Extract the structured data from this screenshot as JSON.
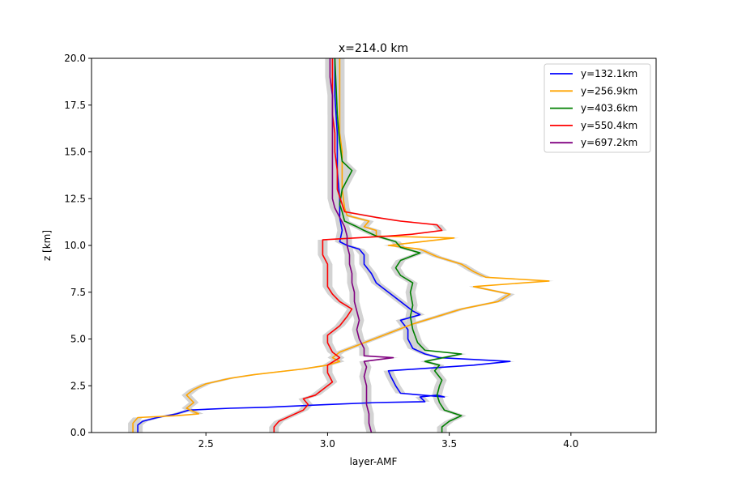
{
  "chart_data": {
    "type": "line",
    "title": "x=214.0 km",
    "xlabel": "layer-AMF",
    "ylabel": "z [km]",
    "xlim": [
      2.03,
      4.35
    ],
    "ylim": [
      0,
      20
    ],
    "xticks": [
      "2.5",
      "3.0",
      "3.5",
      "4.0"
    ],
    "xtick_values": [
      2.5,
      3.0,
      3.5,
      4.0
    ],
    "yticks": [
      "0.0",
      "2.5",
      "5.0",
      "7.5",
      "10.0",
      "12.5",
      "15.0",
      "17.5",
      "20.0"
    ],
    "ytick_values": [
      0,
      2.5,
      5,
      7.5,
      10,
      12.5,
      15,
      17.5,
      20
    ],
    "grid": false,
    "legend_position": "top-right",
    "band_color": "#d3d3d3",
    "series": [
      {
        "name": "y=132.1km",
        "color": "#0000ff",
        "points": [
          [
            2.22,
            0
          ],
          [
            2.22,
            0.4
          ],
          [
            2.24,
            0.6
          ],
          [
            2.3,
            0.8
          ],
          [
            2.38,
            1.0
          ],
          [
            2.43,
            1.2
          ],
          [
            2.6,
            1.3
          ],
          [
            2.75,
            1.35
          ],
          [
            3.0,
            1.5
          ],
          [
            3.2,
            1.6
          ],
          [
            3.4,
            1.65
          ],
          [
            3.38,
            1.9
          ],
          [
            3.45,
            2.0
          ],
          [
            3.48,
            1.9
          ],
          [
            3.3,
            2.1
          ],
          [
            3.28,
            2.5
          ],
          [
            3.26,
            3.0
          ],
          [
            3.25,
            3.3
          ],
          [
            3.6,
            3.6
          ],
          [
            3.75,
            3.8
          ],
          [
            3.46,
            4.0
          ],
          [
            3.4,
            4.2
          ],
          [
            3.35,
            4.5
          ],
          [
            3.33,
            5.0
          ],
          [
            3.33,
            5.5
          ],
          [
            3.3,
            6.0
          ],
          [
            3.38,
            6.3
          ],
          [
            3.35,
            6.5
          ],
          [
            3.3,
            7.0
          ],
          [
            3.25,
            7.5
          ],
          [
            3.2,
            8.0
          ],
          [
            3.18,
            8.5
          ],
          [
            3.15,
            9.0
          ],
          [
            3.15,
            9.5
          ],
          [
            3.13,
            9.8
          ],
          [
            3.08,
            10.0
          ],
          [
            3.05,
            10.2
          ],
          [
            3.06,
            10.8
          ],
          [
            3.05,
            11.5
          ],
          [
            3.05,
            12.5
          ],
          [
            3.04,
            14.0
          ],
          [
            3.04,
            16.0
          ],
          [
            3.03,
            18.0
          ],
          [
            3.03,
            20.0
          ]
        ]
      },
      {
        "name": "y=256.9km",
        "color": "#ffa500",
        "points": [
          [
            2.2,
            0
          ],
          [
            2.2,
            0.5
          ],
          [
            2.22,
            0.8
          ],
          [
            2.38,
            0.9
          ],
          [
            2.47,
            1.0
          ],
          [
            2.42,
            1.3
          ],
          [
            2.45,
            1.6
          ],
          [
            2.42,
            2.0
          ],
          [
            2.45,
            2.3
          ],
          [
            2.5,
            2.6
          ],
          [
            2.6,
            2.9
          ],
          [
            2.7,
            3.1
          ],
          [
            2.9,
            3.4
          ],
          [
            3.0,
            3.6
          ],
          [
            3.05,
            3.8
          ],
          [
            3.02,
            4.0
          ],
          [
            3.05,
            4.3
          ],
          [
            3.15,
            4.8
          ],
          [
            3.25,
            5.3
          ],
          [
            3.35,
            5.8
          ],
          [
            3.45,
            6.2
          ],
          [
            3.55,
            6.6
          ],
          [
            3.7,
            7.0
          ],
          [
            3.75,
            7.4
          ],
          [
            3.6,
            7.8
          ],
          [
            3.91,
            8.1
          ],
          [
            3.65,
            8.3
          ],
          [
            3.6,
            8.6
          ],
          [
            3.55,
            9.0
          ],
          [
            3.45,
            9.4
          ],
          [
            3.38,
            9.8
          ],
          [
            3.25,
            10.0
          ],
          [
            3.52,
            10.4
          ],
          [
            3.2,
            10.5
          ],
          [
            3.2,
            10.8
          ],
          [
            3.15,
            11.0
          ],
          [
            3.17,
            11.3
          ],
          [
            3.08,
            11.6
          ],
          [
            3.07,
            12.0
          ],
          [
            3.06,
            13.0
          ],
          [
            3.06,
            14.0
          ],
          [
            3.06,
            15.0
          ],
          [
            3.05,
            16.0
          ],
          [
            3.05,
            18.0
          ],
          [
            3.05,
            20.0
          ]
        ]
      },
      {
        "name": "y=403.6km",
        "color": "#008000",
        "points": [
          [
            3.47,
            0
          ],
          [
            3.47,
            0.3
          ],
          [
            3.5,
            0.6
          ],
          [
            3.55,
            0.9
          ],
          [
            3.48,
            1.2
          ],
          [
            3.46,
            1.6
          ],
          [
            3.45,
            2.0
          ],
          [
            3.46,
            2.5
          ],
          [
            3.47,
            2.8
          ],
          [
            3.44,
            3.3
          ],
          [
            3.46,
            3.6
          ],
          [
            3.4,
            3.8
          ],
          [
            3.55,
            4.2
          ],
          [
            3.4,
            4.4
          ],
          [
            3.37,
            4.8
          ],
          [
            3.35,
            5.5
          ],
          [
            3.34,
            6.2
          ],
          [
            3.35,
            6.8
          ],
          [
            3.34,
            7.5
          ],
          [
            3.35,
            8.0
          ],
          [
            3.3,
            8.4
          ],
          [
            3.28,
            8.8
          ],
          [
            3.3,
            9.2
          ],
          [
            3.38,
            9.6
          ],
          [
            3.3,
            9.9
          ],
          [
            3.28,
            10.2
          ],
          [
            3.2,
            10.5
          ],
          [
            3.15,
            10.8
          ],
          [
            3.12,
            11.0
          ],
          [
            3.07,
            11.3
          ],
          [
            3.06,
            11.8
          ],
          [
            3.05,
            12.2
          ],
          [
            3.06,
            13.0
          ],
          [
            3.08,
            13.5
          ],
          [
            3.1,
            14.0
          ],
          [
            3.06,
            14.5
          ],
          [
            3.05,
            15.5
          ],
          [
            3.04,
            17.0
          ],
          [
            3.03,
            20.0
          ]
        ]
      },
      {
        "name": "y=550.4km",
        "color": "#ff0000",
        "points": [
          [
            2.78,
            0
          ],
          [
            2.78,
            0.3
          ],
          [
            2.8,
            0.6
          ],
          [
            2.85,
            0.9
          ],
          [
            2.9,
            1.2
          ],
          [
            2.92,
            1.5
          ],
          [
            2.9,
            1.8
          ],
          [
            2.95,
            2.0
          ],
          [
            2.98,
            2.3
          ],
          [
            3.02,
            2.7
          ],
          [
            3.0,
            3.2
          ],
          [
            3.0,
            3.6
          ],
          [
            3.05,
            4.0
          ],
          [
            3.02,
            4.3
          ],
          [
            3.0,
            4.8
          ],
          [
            3.0,
            5.2
          ],
          [
            3.05,
            5.7
          ],
          [
            3.08,
            6.2
          ],
          [
            3.1,
            6.6
          ],
          [
            3.05,
            7.0
          ],
          [
            3.02,
            7.4
          ],
          [
            3.0,
            7.8
          ],
          [
            3.0,
            8.5
          ],
          [
            3.0,
            9.0
          ],
          [
            2.98,
            9.5
          ],
          [
            2.98,
            10.0
          ],
          [
            2.98,
            10.3
          ],
          [
            3.25,
            10.5
          ],
          [
            3.35,
            10.6
          ],
          [
            3.47,
            10.8
          ],
          [
            3.45,
            11.1
          ],
          [
            3.3,
            11.3
          ],
          [
            3.2,
            11.5
          ],
          [
            3.07,
            11.8
          ],
          [
            3.06,
            12.2
          ],
          [
            3.04,
            13.0
          ],
          [
            3.04,
            14.0
          ],
          [
            3.03,
            15.0
          ],
          [
            3.03,
            16.0
          ],
          [
            3.02,
            17.0
          ],
          [
            3.02,
            18.0
          ],
          [
            3.02,
            19.0
          ],
          [
            3.02,
            20.0
          ]
        ]
      },
      {
        "name": "y=697.2km",
        "color": "#800080",
        "points": [
          [
            3.18,
            0
          ],
          [
            3.17,
            0.5
          ],
          [
            3.17,
            1.0
          ],
          [
            3.16,
            1.5
          ],
          [
            3.16,
            2.0
          ],
          [
            3.16,
            2.5
          ],
          [
            3.15,
            3.0
          ],
          [
            3.16,
            3.5
          ],
          [
            3.15,
            3.8
          ],
          [
            3.27,
            4.0
          ],
          [
            3.15,
            4.1
          ],
          [
            3.15,
            4.5
          ],
          [
            3.13,
            5.0
          ],
          [
            3.12,
            5.5
          ],
          [
            3.13,
            6.0
          ],
          [
            3.12,
            6.5
          ],
          [
            3.11,
            7.0
          ],
          [
            3.11,
            7.5
          ],
          [
            3.1,
            8.0
          ],
          [
            3.1,
            8.5
          ],
          [
            3.09,
            9.0
          ],
          [
            3.09,
            9.5
          ],
          [
            3.08,
            10.0
          ],
          [
            3.08,
            10.5
          ],
          [
            3.07,
            11.0
          ],
          [
            3.05,
            11.5
          ],
          [
            3.03,
            12.0
          ],
          [
            3.02,
            12.5
          ],
          [
            3.02,
            13.0
          ],
          [
            3.02,
            14.0
          ],
          [
            3.02,
            15.0
          ],
          [
            3.02,
            16.0
          ],
          [
            3.02,
            17.0
          ],
          [
            3.02,
            18.0
          ],
          [
            3.01,
            19.0
          ],
          [
            3.01,
            20.0
          ]
        ]
      }
    ]
  }
}
